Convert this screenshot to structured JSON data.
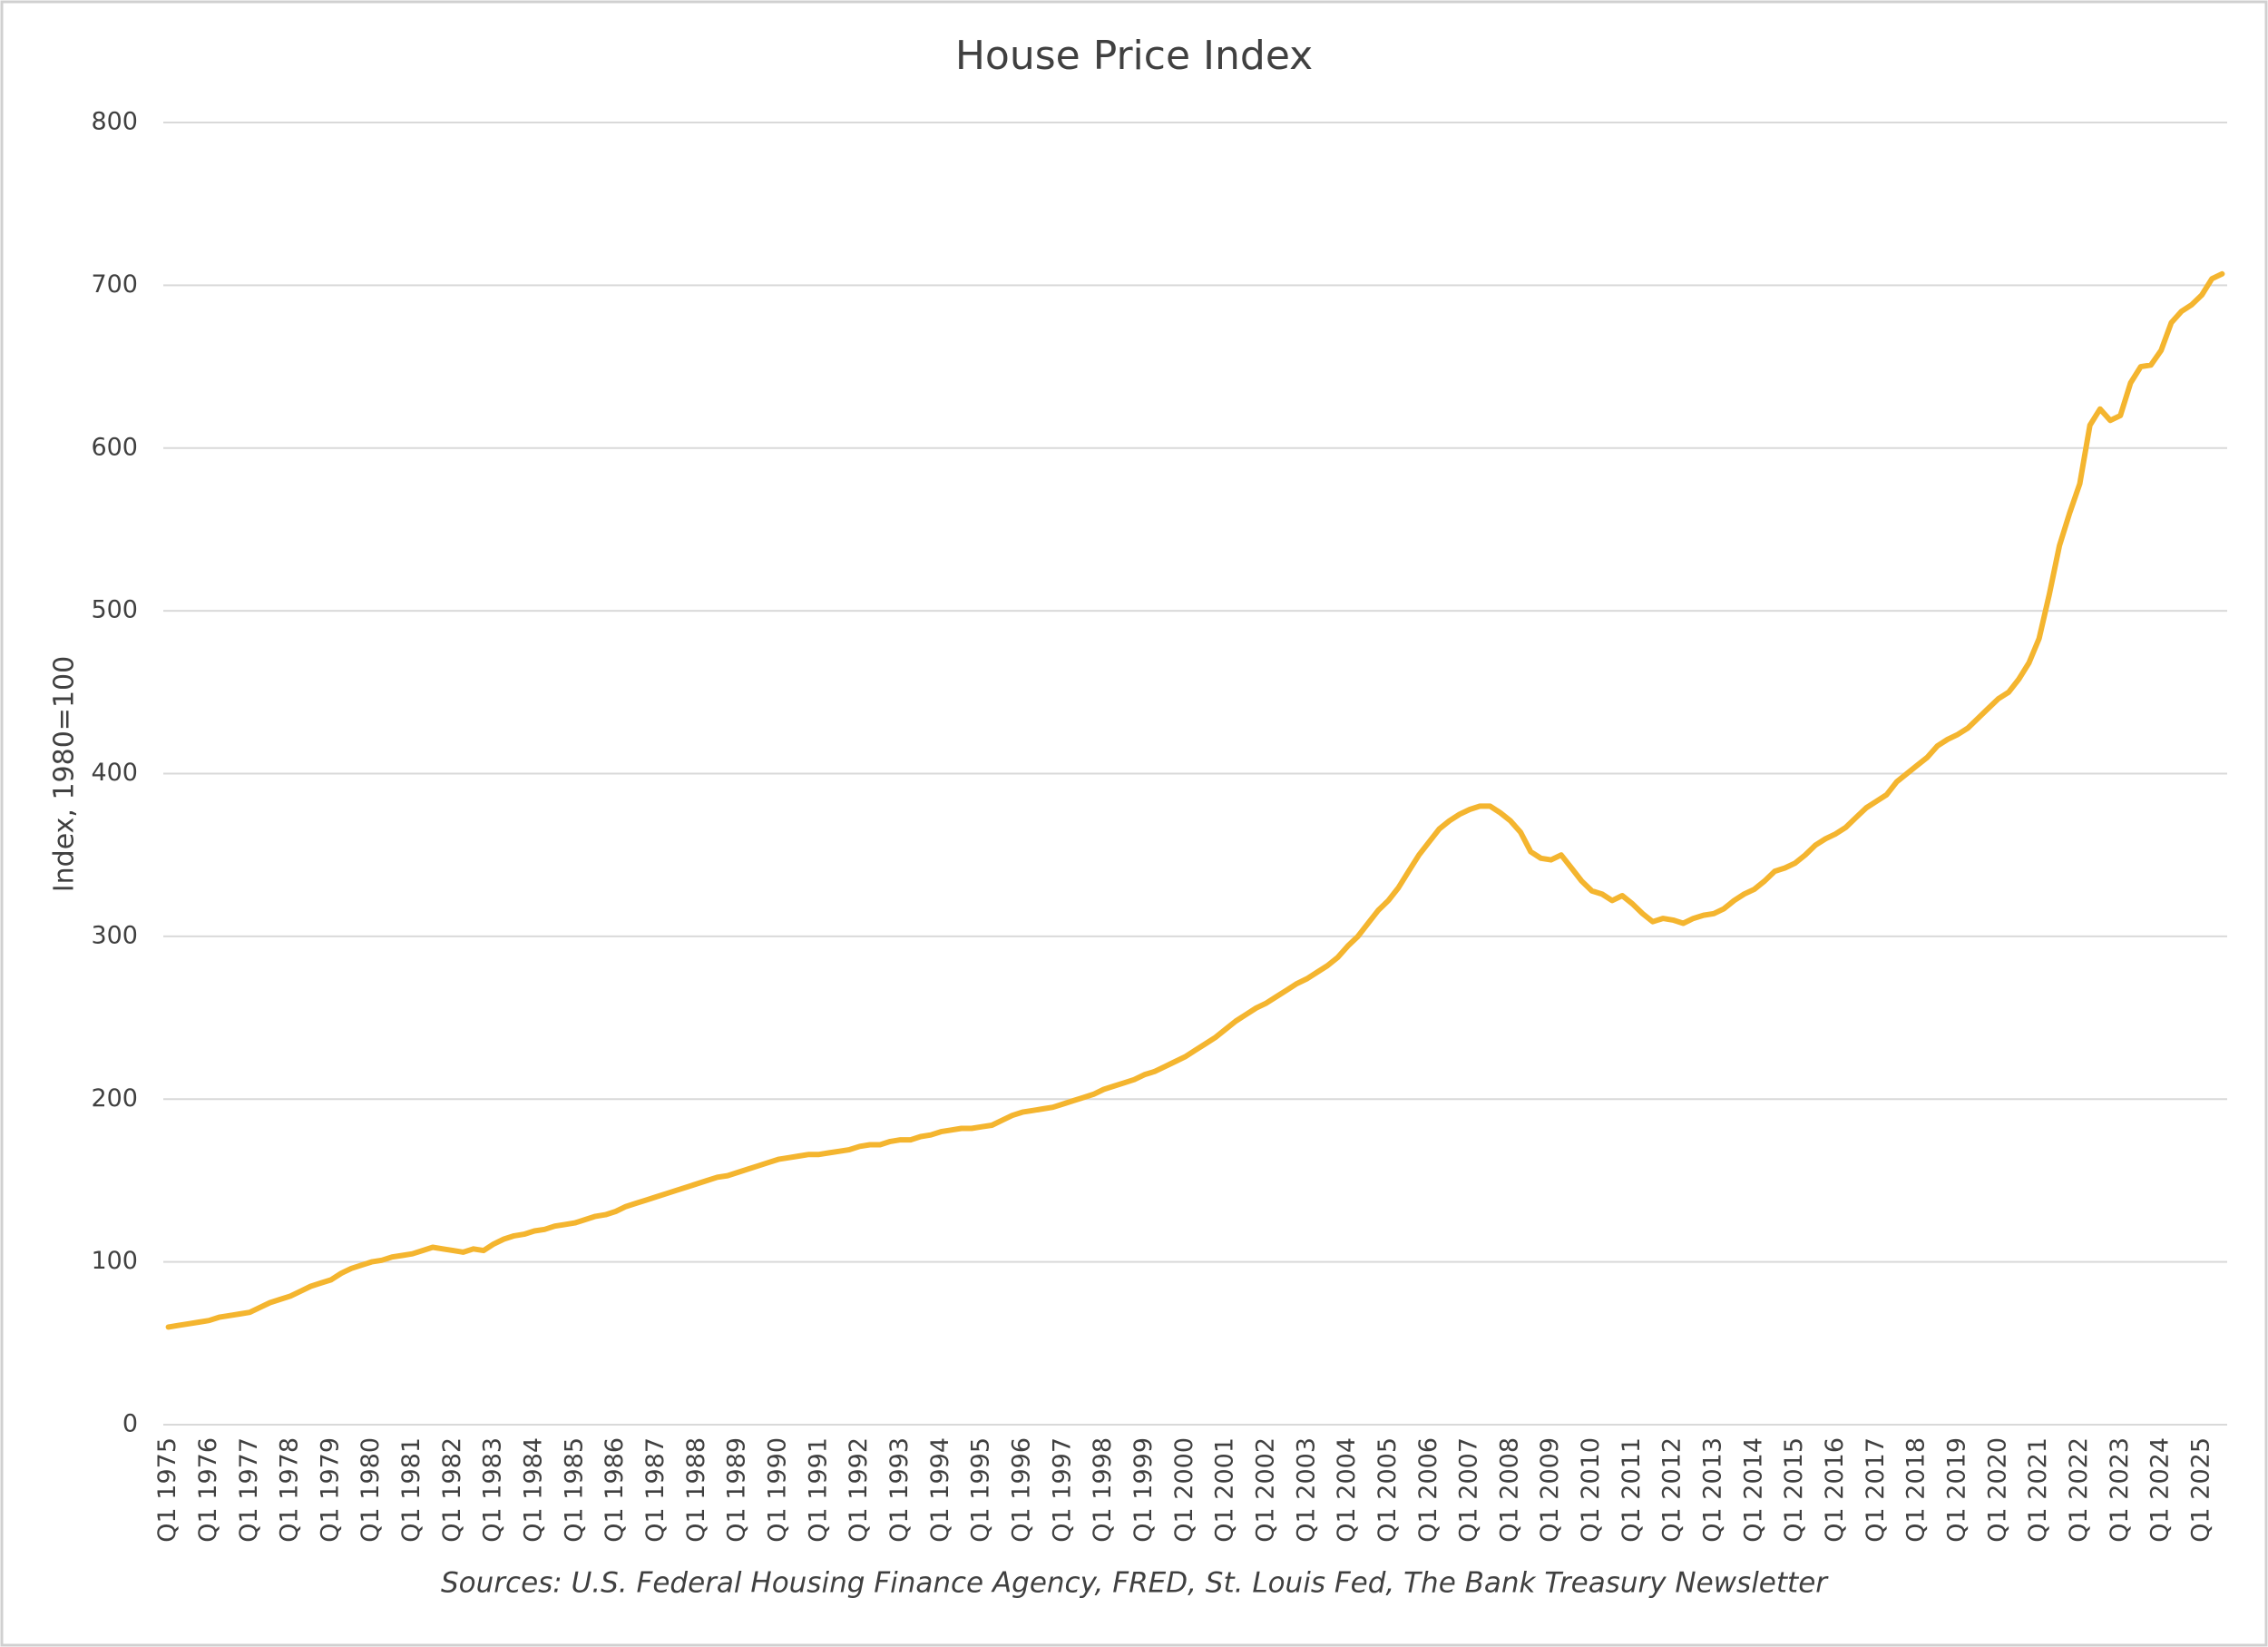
{
  "chart_data": {
    "type": "line",
    "title": "House Price Index",
    "ylabel": "Index, 1980=100",
    "source": "Sources: U.S. Federal Housing Finance Agency, FRED, St. Louis Fed, The Bank Treasury Newsletter",
    "categories": [
      "Q1 1975",
      null,
      null,
      null,
      "Q1 1976",
      null,
      null,
      null,
      "Q1 1977",
      null,
      null,
      null,
      "Q1 1978",
      null,
      null,
      null,
      "Q1 1979",
      null,
      null,
      null,
      "Q1 1980",
      null,
      null,
      null,
      "Q1 1981",
      null,
      null,
      null,
      "Q1 1982",
      null,
      null,
      null,
      "Q1 1983",
      null,
      null,
      null,
      "Q1 1984",
      null,
      null,
      null,
      "Q1 1985",
      null,
      null,
      null,
      "Q1 1986",
      null,
      null,
      null,
      "Q1 1987",
      null,
      null,
      null,
      "Q1 1988",
      null,
      null,
      null,
      "Q1 1989",
      null,
      null,
      null,
      "Q1 1990",
      null,
      null,
      null,
      "Q1 1991",
      null,
      null,
      null,
      "Q1 1992",
      null,
      null,
      null,
      "Q1 1993",
      null,
      null,
      null,
      "Q1 1994",
      null,
      null,
      null,
      "Q1 1995",
      null,
      null,
      null,
      "Q1 1996",
      null,
      null,
      null,
      "Q1 1997",
      null,
      null,
      null,
      "Q1 1998",
      null,
      null,
      null,
      "Q1 1999",
      null,
      null,
      null,
      "Q1 2000",
      null,
      null,
      null,
      "Q1 2001",
      null,
      null,
      null,
      "Q1 2002",
      null,
      null,
      null,
      "Q1 2003",
      null,
      null,
      null,
      "Q1 2004",
      null,
      null,
      null,
      "Q1 2005",
      null,
      null,
      null,
      "Q1 2006",
      null,
      null,
      null,
      "Q1 2007",
      null,
      null,
      null,
      "Q1 2008",
      null,
      null,
      null,
      "Q1 2009",
      null,
      null,
      null,
      "Q1 2010",
      null,
      null,
      null,
      "Q1 2011",
      null,
      null,
      null,
      "Q1 2012",
      null,
      null,
      null,
      "Q1 2013",
      null,
      null,
      null,
      "Q1 2014",
      null,
      null,
      null,
      "Q1 2015",
      null,
      null,
      null,
      "Q1 2016",
      null,
      null,
      null,
      "Q1 2017",
      null,
      null,
      null,
      "Q1 2018",
      null,
      null,
      null,
      "Q1 2019",
      null,
      null,
      null,
      "Q1 2020",
      null,
      null,
      null,
      "Q1 2021",
      null,
      null,
      null,
      "Q1 2022",
      null,
      null,
      null,
      "Q1 2023",
      null,
      null,
      null,
      "Q1 2024",
      null,
      null,
      null,
      "Q1 2025",
      null,
      null
    ],
    "values": [
      60,
      61,
      62,
      63,
      64,
      66,
      67,
      68,
      69,
      72,
      75,
      77,
      79,
      82,
      85,
      87,
      89,
      93,
      96,
      98,
      100,
      101,
      103,
      104,
      105,
      107,
      109,
      108,
      107,
      106,
      108,
      107,
      111,
      114,
      116,
      117,
      119,
      120,
      122,
      123,
      124,
      126,
      128,
      129,
      131,
      134,
      136,
      138,
      140,
      142,
      144,
      146,
      148,
      150,
      152,
      153,
      155,
      157,
      159,
      161,
      163,
      164,
      165,
      166,
      166,
      167,
      168,
      169,
      171,
      172,
      172,
      174,
      175,
      175,
      177,
      178,
      180,
      181,
      182,
      182,
      183,
      184,
      187,
      190,
      192,
      193,
      194,
      195,
      197,
      199,
      201,
      203,
      206,
      208,
      210,
      212,
      215,
      217,
      220,
      223,
      226,
      230,
      234,
      238,
      243,
      248,
      252,
      256,
      259,
      263,
      267,
      271,
      274,
      278,
      282,
      287,
      294,
      300,
      308,
      316,
      322,
      330,
      340,
      350,
      358,
      366,
      371,
      375,
      378,
      380,
      380,
      376,
      371,
      364,
      352,
      348,
      347,
      350,
      342,
      334,
      328,
      326,
      322,
      325,
      320,
      314,
      309,
      311,
      310,
      308,
      311,
      313,
      314,
      317,
      322,
      326,
      329,
      334,
      340,
      342,
      345,
      350,
      356,
      360,
      363,
      367,
      373,
      379,
      383,
      387,
      395,
      400,
      405,
      410,
      417,
      421,
      424,
      428,
      434,
      440,
      446,
      450,
      458,
      468,
      483,
      510,
      540,
      560,
      578,
      614,
      624,
      617,
      620,
      640,
      650,
      651,
      660,
      677,
      684,
      688,
      694,
      704,
      707
    ],
    "color": "#f4b52f",
    "ylim": [
      0,
      800
    ],
    "yticks": [
      0,
      100,
      200,
      300,
      400,
      500,
      600,
      700,
      800
    ],
    "grid": true
  }
}
